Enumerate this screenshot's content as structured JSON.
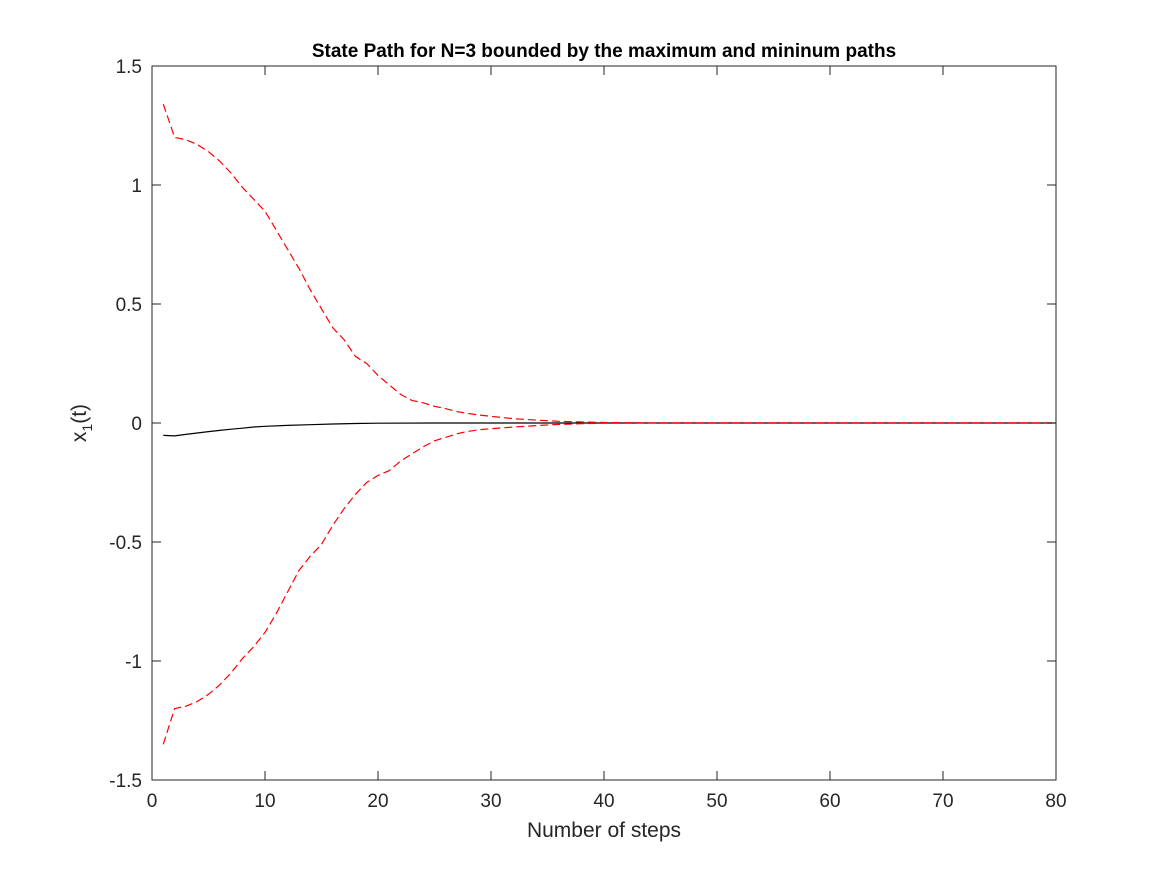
{
  "chart_data": {
    "type": "line",
    "title": "State Path for N=3 bounded by the maximum and mininum paths",
    "xlabel": "Number of steps",
    "ylabel": {
      "base": "x",
      "sub": "1",
      "suffix": "(t)"
    },
    "xlim": [
      0,
      80
    ],
    "ylim": [
      -1.5,
      1.5
    ],
    "xticks": [
      0,
      10,
      20,
      30,
      40,
      50,
      60,
      70,
      80
    ],
    "xtick_labels": [
      "0",
      "10",
      "20",
      "30",
      "40",
      "50",
      "60",
      "70",
      "80"
    ],
    "yticks": [
      1.5,
      1,
      0.5,
      0,
      -0.5,
      -1,
      -1.5
    ],
    "ytick_labels": [
      "1.5",
      "1",
      "0.5",
      "0",
      "-0.5",
      "-1",
      "-1.5"
    ],
    "grid": false,
    "legend": null,
    "series": [
      {
        "style": "solid",
        "color": "#000000",
        "x": [
          1,
          2,
          3,
          4,
          5,
          6,
          7,
          8,
          9,
          10,
          12,
          14,
          16,
          18,
          20,
          25,
          30,
          35,
          40,
          50,
          60,
          70,
          80
        ],
        "y": [
          -0.052,
          -0.054,
          -0.048,
          -0.042,
          -0.036,
          -0.031,
          -0.026,
          -0.022,
          -0.017,
          -0.014,
          -0.01,
          -0.007,
          -0.004,
          -0.002,
          -0.001,
          0,
          0,
          0,
          0,
          0,
          0,
          0,
          0
        ]
      },
      {
        "style": "dashed",
        "color": "#ff0000",
        "x": [
          1,
          2,
          3,
          4,
          5,
          6,
          7,
          8,
          9,
          10,
          11,
          12,
          13,
          14,
          15,
          16,
          17,
          18,
          19,
          20,
          21,
          22,
          23,
          24,
          25,
          26,
          27,
          28,
          29,
          30,
          32,
          34,
          36,
          38,
          40,
          45,
          50,
          60,
          70,
          80
        ],
        "y": [
          1.34,
          1.2,
          1.19,
          1.17,
          1.14,
          1.1,
          1.05,
          0.99,
          0.94,
          0.89,
          0.81,
          0.73,
          0.65,
          0.56,
          0.48,
          0.4,
          0.35,
          0.28,
          0.25,
          0.2,
          0.16,
          0.12,
          0.095,
          0.085,
          0.07,
          0.06,
          0.048,
          0.04,
          0.033,
          0.028,
          0.018,
          0.012,
          0.007,
          0.004,
          0.002,
          0,
          0,
          0,
          0,
          0
        ]
      },
      {
        "style": "dashed",
        "color": "#ff0000",
        "x": [
          1,
          2,
          3,
          4,
          5,
          6,
          7,
          8,
          9,
          10,
          11,
          12,
          13,
          14,
          15,
          16,
          17,
          18,
          19,
          20,
          21,
          22,
          23,
          24,
          25,
          26,
          27,
          28,
          29,
          30,
          32,
          34,
          36,
          38,
          40,
          45,
          50,
          60,
          70,
          80
        ],
        "y": [
          -1.35,
          -1.2,
          -1.19,
          -1.17,
          -1.14,
          -1.1,
          -1.05,
          -0.99,
          -0.94,
          -0.88,
          -0.8,
          -0.71,
          -0.62,
          -0.56,
          -0.51,
          -0.43,
          -0.36,
          -0.3,
          -0.25,
          -0.22,
          -0.2,
          -0.16,
          -0.13,
          -0.1,
          -0.075,
          -0.06,
          -0.045,
          -0.035,
          -0.028,
          -0.024,
          -0.017,
          -0.011,
          -0.006,
          -0.003,
          -0.001,
          0,
          0,
          0,
          0,
          0
        ]
      }
    ]
  }
}
